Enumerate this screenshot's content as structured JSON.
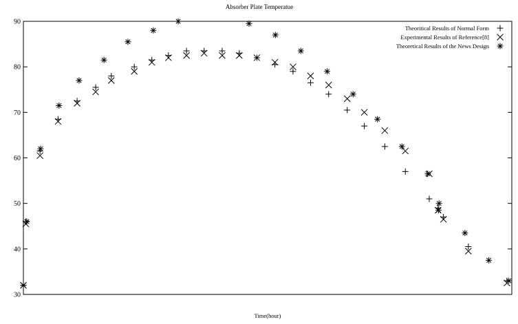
{
  "chart_data": {
    "type": "scatter",
    "title": "Absorber Plate Temperatue",
    "xlabel": "Time(hour)",
    "ylabel": "",
    "xlim": [
      0,
      100
    ],
    "ylim": [
      30,
      90
    ],
    "y_ticks": [
      30,
      40,
      50,
      60,
      70,
      80,
      90
    ],
    "x_ticks": [],
    "grid": false,
    "legend_position": "top-right",
    "series": [
      {
        "name": "Theoritical Results of Normal Form",
        "marker": "plus",
        "color": "#000000",
        "points": [
          {
            "x": 0.0,
            "y": 32.0
          },
          {
            "x": 0.5,
            "y": 46.0
          },
          {
            "x": 3.4,
            "y": 61.5
          },
          {
            "x": 7.1,
            "y": 68.5
          },
          {
            "x": 11.0,
            "y": 72.5
          },
          {
            "x": 14.8,
            "y": 75.5
          },
          {
            "x": 18.0,
            "y": 78.0
          },
          {
            "x": 22.7,
            "y": 80.0
          },
          {
            "x": 26.3,
            "y": 81.5
          },
          {
            "x": 29.7,
            "y": 82.5
          },
          {
            "x": 33.4,
            "y": 83.5
          },
          {
            "x": 37.0,
            "y": 83.5
          },
          {
            "x": 40.7,
            "y": 83.5
          },
          {
            "x": 44.2,
            "y": 83.0
          },
          {
            "x": 47.8,
            "y": 82.0
          },
          {
            "x": 51.5,
            "y": 80.5
          },
          {
            "x": 55.2,
            "y": 79.0
          },
          {
            "x": 58.8,
            "y": 76.5
          },
          {
            "x": 62.5,
            "y": 74.0
          },
          {
            "x": 66.3,
            "y": 70.5
          },
          {
            "x": 69.8,
            "y": 67.0
          },
          {
            "x": 74.0,
            "y": 62.5
          },
          {
            "x": 78.2,
            "y": 57.0
          },
          {
            "x": 83.1,
            "y": 51.0
          },
          {
            "x": 84.9,
            "y": 49.0
          },
          {
            "x": 86.0,
            "y": 47.0
          },
          {
            "x": 91.1,
            "y": 40.5
          },
          {
            "x": 99.0,
            "y": 33.0
          }
        ]
      },
      {
        "name": "Experimental Results of Reference[8]",
        "marker": "x",
        "color": "#000000",
        "points": [
          {
            "x": 0.0,
            "y": 32.0
          },
          {
            "x": 0.5,
            "y": 45.5
          },
          {
            "x": 3.4,
            "y": 60.5
          },
          {
            "x": 7.1,
            "y": 68.0
          },
          {
            "x": 11.0,
            "y": 72.0
          },
          {
            "x": 14.8,
            "y": 74.5
          },
          {
            "x": 18.0,
            "y": 77.0
          },
          {
            "x": 22.7,
            "y": 79.0
          },
          {
            "x": 26.3,
            "y": 81.0
          },
          {
            "x": 29.7,
            "y": 82.0
          },
          {
            "x": 33.4,
            "y": 82.5
          },
          {
            "x": 37.0,
            "y": 83.0
          },
          {
            "x": 40.7,
            "y": 82.5
          },
          {
            "x": 44.2,
            "y": 82.5
          },
          {
            "x": 47.8,
            "y": 82.0
          },
          {
            "x": 51.5,
            "y": 81.0
          },
          {
            "x": 55.2,
            "y": 80.0
          },
          {
            "x": 58.8,
            "y": 78.0
          },
          {
            "x": 62.5,
            "y": 76.0
          },
          {
            "x": 66.3,
            "y": 73.0
          },
          {
            "x": 69.8,
            "y": 70.0
          },
          {
            "x": 74.0,
            "y": 66.0
          },
          {
            "x": 78.2,
            "y": 61.5
          },
          {
            "x": 83.1,
            "y": 56.5
          },
          {
            "x": 84.9,
            "y": 48.5
          },
          {
            "x": 86.0,
            "y": 46.5
          },
          {
            "x": 91.1,
            "y": 39.5
          },
          {
            "x": 99.0,
            "y": 32.5
          }
        ]
      },
      {
        "name": "Theoretical Results of the News Design",
        "marker": "star",
        "color": "#000000",
        "points": [
          {
            "x": 0.0,
            "y": 32.0
          },
          {
            "x": 0.7,
            "y": 46.0
          },
          {
            "x": 3.5,
            "y": 62.0
          },
          {
            "x": 7.3,
            "y": 71.5
          },
          {
            "x": 11.4,
            "y": 77.0
          },
          {
            "x": 16.5,
            "y": 81.5
          },
          {
            "x": 21.4,
            "y": 85.5
          },
          {
            "x": 26.6,
            "y": 88.0
          },
          {
            "x": 31.7,
            "y": 90.0
          },
          {
            "x": 46.2,
            "y": 89.5
          },
          {
            "x": 51.6,
            "y": 87.0
          },
          {
            "x": 56.8,
            "y": 83.5
          },
          {
            "x": 62.2,
            "y": 79.0
          },
          {
            "x": 67.5,
            "y": 74.0
          },
          {
            "x": 72.5,
            "y": 68.5
          },
          {
            "x": 77.5,
            "y": 62.5
          },
          {
            "x": 82.8,
            "y": 56.5
          },
          {
            "x": 85.0,
            "y": 48.5
          },
          {
            "x": 85.1,
            "y": 50.0
          },
          {
            "x": 90.4,
            "y": 43.5
          },
          {
            "x": 95.3,
            "y": 37.5
          },
          {
            "x": 99.4,
            "y": 33.0
          }
        ]
      }
    ]
  }
}
